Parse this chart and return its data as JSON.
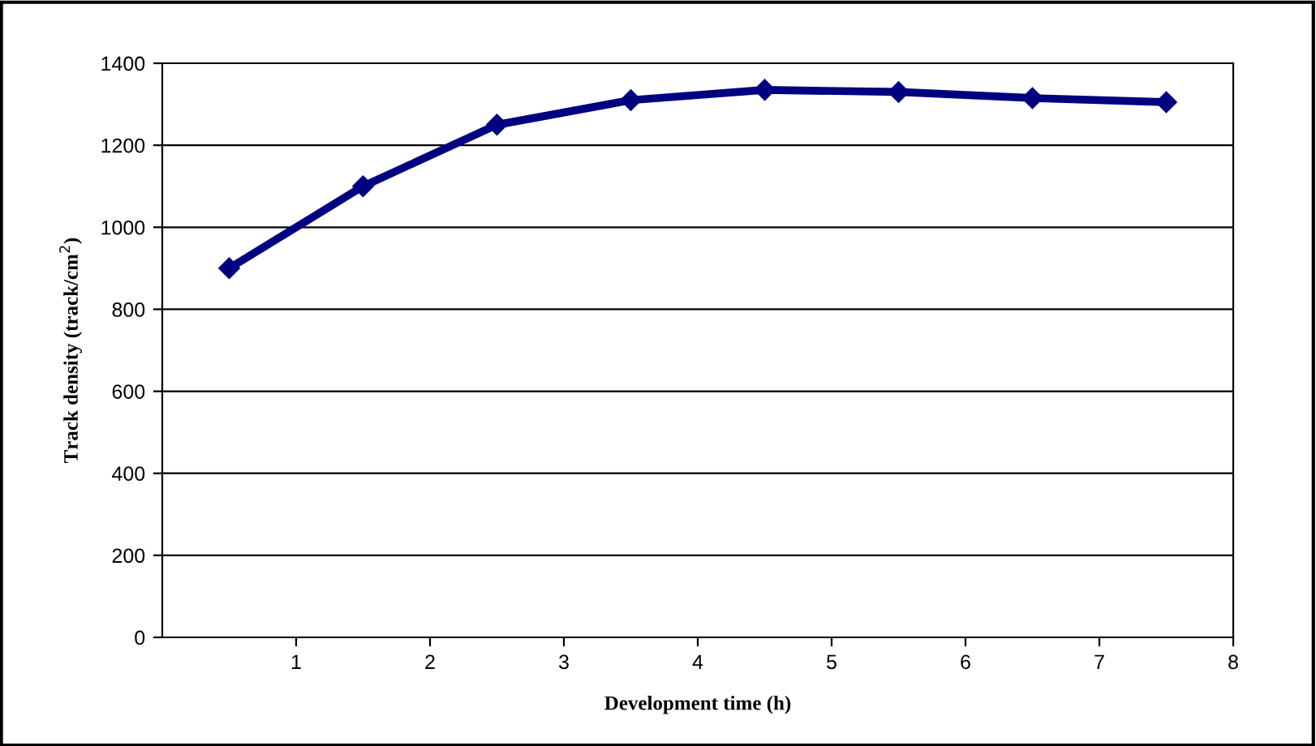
{
  "chart_data": {
    "type": "line",
    "xlabel": "Development time (h)",
    "ylabel": "Track density (track/cm$^{2}$)",
    "x": [
      0.5,
      1.5,
      2.5,
      3.5,
      4.5,
      5.5,
      6.5,
      7.5
    ],
    "series": [
      {
        "color": "#000080",
        "values": [
          900,
          1100,
          1250,
          1310,
          1335,
          1330,
          1315,
          1305
        ]
      }
    ],
    "xlim": [
      0,
      8
    ],
    "xticks": [
      1,
      2,
      3,
      4,
      5,
      6,
      7,
      8
    ],
    "ylim": [
      0,
      1400
    ],
    "yticks": [
      0,
      200,
      400,
      600,
      800,
      1000,
      1200,
      1400
    ],
    "grid": "y",
    "marker": "diamond",
    "line_style": "solid"
  }
}
